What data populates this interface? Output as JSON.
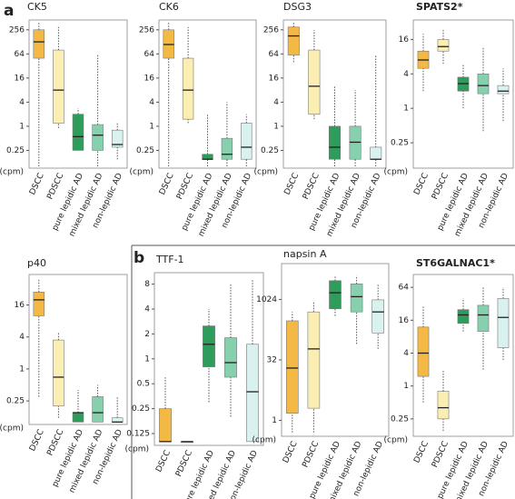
{
  "panel_labels": [
    "a",
    "b"
  ],
  "chart_data": [
    {
      "type": "box",
      "title": "CK5",
      "title_bold": false,
      "y_unit": "(cpm)",
      "log_scale": true,
      "ylim": [
        0.09,
        450
      ],
      "yticks": [
        0.25,
        1,
        4,
        16,
        64,
        256
      ],
      "categories": [
        "DSCC",
        "PDSCC",
        "pure lepidic AD",
        "mixed lepidic AD",
        "non-lepidic AD"
      ],
      "colors": [
        "#f4b844",
        "#fbeeb2",
        "#2e9c5a",
        "#86d0ae",
        "#d9f1ef"
      ],
      "values": [
        [
          0.1,
          50,
          128,
          256,
          400
        ],
        [
          0.9,
          1.2,
          8,
          80,
          300
        ],
        [
          0.25,
          0.25,
          0.55,
          2,
          2.8
        ],
        [
          0.1,
          0.25,
          0.6,
          1.1,
          60
        ],
        [
          0.15,
          0.3,
          0.35,
          0.8,
          1.2
        ]
      ]
    },
    {
      "type": "box",
      "title": "CK6",
      "title_bold": false,
      "y_unit": "(cpm)",
      "log_scale": true,
      "ylim": [
        0.09,
        450
      ],
      "yticks": [
        0.25,
        1,
        4,
        16,
        64,
        256
      ],
      "categories": [
        "DSCC",
        "PDSCC",
        "pure lepidic AD",
        "mixed lepidic AD",
        "non-lepidic AD"
      ],
      "colors": [
        "#f4b844",
        "#fbeeb2",
        "#2e9c5a",
        "#86d0ae",
        "#d9f1ef"
      ],
      "values": [
        [
          0.1,
          50,
          110,
          256,
          400
        ],
        [
          1.2,
          1.5,
          8,
          50,
          300
        ],
        [
          0.1,
          0.15,
          0.15,
          0.2,
          2
        ],
        [
          0.1,
          0.15,
          0.2,
          0.5,
          4
        ],
        [
          0.1,
          0.15,
          0.3,
          1.2,
          2
        ]
      ]
    },
    {
      "type": "box",
      "title": "DSG3",
      "title_bold": false,
      "y_unit": "(cpm)",
      "log_scale": true,
      "ylim": [
        0.09,
        450
      ],
      "yticks": [
        0.25,
        1,
        4,
        16,
        64,
        256
      ],
      "categories": [
        "DSCC",
        "PDSCC",
        "pure lepidic AD",
        "mixed lepidic AD",
        "non-lepidic AD"
      ],
      "colors": [
        "#f4b844",
        "#fbeeb2",
        "#2e9c5a",
        "#86d0ae",
        "#d9f1ef"
      ],
      "values": [
        [
          40,
          60,
          180,
          300,
          400
        ],
        [
          1.5,
          2,
          10,
          80,
          250
        ],
        [
          0.1,
          0.15,
          0.3,
          1,
          10
        ],
        [
          0.1,
          0.15,
          0.4,
          1,
          8
        ],
        [
          0.1,
          0.15,
          0.15,
          0.3,
          60
        ]
      ]
    },
    {
      "type": "box",
      "title": "SPATS2*",
      "title_bold": true,
      "y_unit": "(cpm)",
      "log_scale": true,
      "ylim": [
        0.09,
        35
      ],
      "yticks": [
        0.25,
        1,
        4,
        16
      ],
      "categories": [
        "DSCC",
        "PDSCC",
        "pure lepidic AD",
        "mixed lepidic AD",
        "non-lepidic AD"
      ],
      "colors": [
        "#f4b844",
        "#fbeeb2",
        "#2e9c5a",
        "#86d0ae",
        "#d9f1ef"
      ],
      "values": [
        [
          2,
          5,
          7,
          10,
          20
        ],
        [
          6,
          10,
          12,
          16,
          25
        ],
        [
          1,
          2,
          2.7,
          3.5,
          6
        ],
        [
          0.4,
          1.8,
          2.5,
          4,
          12
        ],
        [
          0.6,
          1.8,
          2,
          2.5,
          5
        ]
      ]
    },
    {
      "type": "box",
      "title": "p40",
      "title_bold": false,
      "y_unit": "(cpm)",
      "log_scale": true,
      "ylim": [
        0.09,
        60
      ],
      "yticks": [
        0.25,
        1,
        4,
        16
      ],
      "categories": [
        "DSCC",
        "PDSCC",
        "pure lepidic AD",
        "mixed lepidic AD",
        "non-lepidic AD"
      ],
      "colors": [
        "#f4b844",
        "#fbeeb2",
        "#2e9c5a",
        "#86d0ae",
        "#d9f1ef"
      ],
      "values": [
        [
          0.3,
          10,
          20,
          28,
          50
        ],
        [
          0.12,
          0.2,
          0.7,
          3.5,
          5
        ],
        [
          0.1,
          0.1,
          0.15,
          0.15,
          0.4
        ],
        [
          0.1,
          0.1,
          0.15,
          0.3,
          0.5
        ],
        [
          0.1,
          0.1,
          0.1,
          0.12,
          0.3
        ]
      ]
    },
    {
      "type": "box",
      "title": "TTF-1",
      "title_bold": false,
      "y_unit": "(cpm)",
      "log_scale": true,
      "ylim": [
        0.09,
        11
      ],
      "yticks": [
        0.125,
        0.25,
        0.5,
        1,
        2,
        4,
        8
      ],
      "categories": [
        "DSCC",
        "PDSCC",
        "pure lepidic AD",
        "mixed lepidic AD",
        "non-lepidic AD"
      ],
      "colors": [
        "#f4b844",
        "#fbeeb2",
        "#2e9c5a",
        "#86d0ae",
        "#d9f1ef"
      ],
      "values": [
        [
          0.1,
          0.1,
          0.1,
          0.25,
          0.6
        ],
        [
          0.1,
          0.1,
          0.1,
          0.1,
          0.1
        ],
        [
          0.3,
          0.8,
          1.5,
          2.5,
          4
        ],
        [
          0.2,
          0.6,
          0.9,
          1.8,
          8
        ],
        [
          0.1,
          0.1,
          0.4,
          1.5,
          9
        ]
      ]
    },
    {
      "type": "box",
      "title": "napsin A",
      "title_bold": false,
      "y_unit": "(cpm)",
      "log_scale": true,
      "ylim": [
        0.4,
        8000
      ],
      "yticks": [
        1,
        32,
        1024
      ],
      "categories": [
        "DSCC",
        "PDSCC",
        "pure lepidic AD",
        "mixed lepidic AD",
        "non-lepidic AD"
      ],
      "colors": [
        "#f4b844",
        "#fbeeb2",
        "#2e9c5a",
        "#86d0ae",
        "#d9f1ef"
      ],
      "values": [
        [
          0.5,
          1.5,
          20,
          300,
          500
        ],
        [
          0.5,
          2,
          60,
          500,
          900
        ],
        [
          400,
          600,
          1500,
          3000,
          4000
        ],
        [
          80,
          500,
          1200,
          2500,
          4000
        ],
        [
          60,
          150,
          500,
          1000,
          2500
        ]
      ]
    },
    {
      "type": "box",
      "title": "ST6GALNAC1*",
      "title_bold": true,
      "y_unit": "(cpm)",
      "log_scale": true,
      "ylim": [
        0.12,
        110
      ],
      "yticks": [
        0.25,
        1,
        4,
        16,
        64
      ],
      "categories": [
        "DSCC",
        "PDSCC",
        "pure lepidic AD",
        "mixed lepidic AD",
        "non-lepidic AD"
      ],
      "colors": [
        "#f4b844",
        "#fbeeb2",
        "#2e9c5a",
        "#86d0ae",
        "#d9f1ef"
      ],
      "values": [
        [
          0.5,
          1.5,
          4,
          12,
          30
        ],
        [
          0.15,
          0.25,
          0.4,
          0.8,
          2
        ],
        [
          10,
          14,
          20,
          25,
          40
        ],
        [
          2,
          10,
          20,
          30,
          64
        ],
        [
          3,
          5,
          18,
          40,
          64
        ]
      ]
    }
  ]
}
